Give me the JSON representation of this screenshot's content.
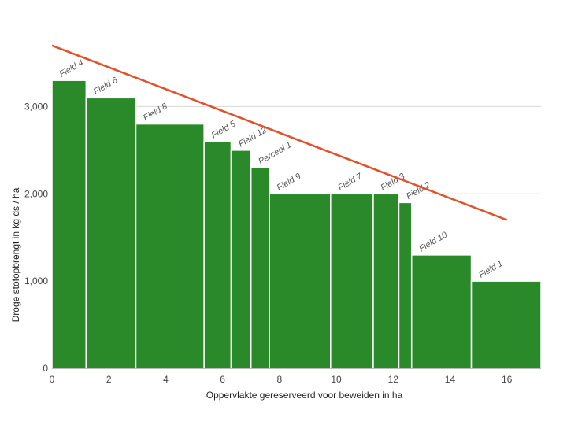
{
  "chart_data": {
    "type": "bar",
    "subtype": "variable-width",
    "title": "",
    "xlabel": "Oppervlakte gereserveerd voor beweiden in ha",
    "ylabel": "Droge stofopbrengt in kg ds / ha",
    "xlim": [
      0,
      17.2
    ],
    "ylim": [
      0,
      3500
    ],
    "x_ticks": [
      0,
      2,
      4,
      6,
      8,
      10,
      12,
      14,
      16
    ],
    "y_ticks": [
      0,
      1000,
      2000,
      3000
    ],
    "x_tick_labels": [
      "0",
      "2",
      "4",
      "6",
      "8",
      "10",
      "12",
      "14",
      "16"
    ],
    "y_tick_labels": [
      "0",
      "1,000",
      "2,000",
      "3,000"
    ],
    "bar_color": "#2a8a2a",
    "line_color": "#e0522a",
    "grid_color": "#d8d8d8",
    "bars": [
      {
        "label": "Field 4",
        "x0": 0.0,
        "x1": 1.2,
        "value": 3300
      },
      {
        "label": "Field 6",
        "x0": 1.2,
        "x1": 2.95,
        "value": 3100
      },
      {
        "label": "Field 8",
        "x0": 2.95,
        "x1": 5.35,
        "value": 2800
      },
      {
        "label": "Field 5",
        "x0": 5.35,
        "x1": 6.3,
        "value": 2600
      },
      {
        "label": "Field 12",
        "x0": 6.3,
        "x1": 7.0,
        "value": 2500
      },
      {
        "label": "Perceel 1",
        "x0": 7.0,
        "x1": 7.65,
        "value": 2300
      },
      {
        "label": "Field 9",
        "x0": 7.65,
        "x1": 9.8,
        "value": 2000
      },
      {
        "label": "Field 7",
        "x0": 9.8,
        "x1": 11.3,
        "value": 2000
      },
      {
        "label": "Field 3",
        "x0": 11.3,
        "x1": 12.2,
        "value": 2000
      },
      {
        "label": "Field 2",
        "x0": 12.2,
        "x1": 12.65,
        "value": 1900
      },
      {
        "label": "Field 10",
        "x0": 12.65,
        "x1": 14.75,
        "value": 1300
      },
      {
        "label": "Field 1",
        "x0": 14.75,
        "x1": 17.2,
        "value": 1000
      }
    ],
    "trend_line": {
      "x": [
        0,
        16
      ],
      "y": [
        3700,
        1700
      ]
    }
  }
}
